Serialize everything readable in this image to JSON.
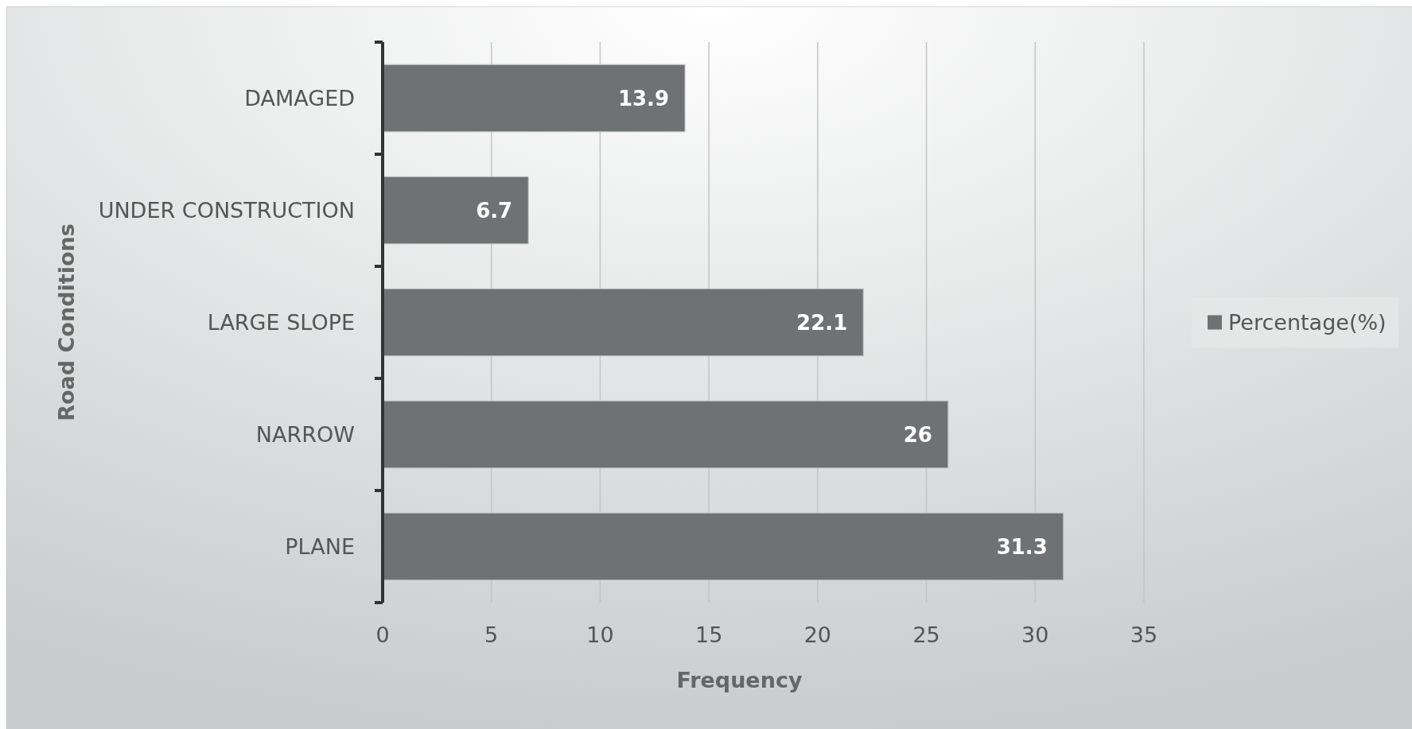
{
  "chart_data": {
    "type": "bar",
    "orientation": "horizontal",
    "xlabel": "Frequency",
    "ylabel": "Road Conditions",
    "categories": [
      "DAMAGED",
      "UNDER CONSTRUCTION",
      "LARGE SLOPE",
      "NARROW",
      "PLANE"
    ],
    "series": [
      {
        "name": "Percentage(%)",
        "color": "#6f7273",
        "values": [
          13.9,
          6.7,
          22.1,
          26,
          31.3
        ]
      }
    ],
    "xlim": [
      0,
      35
    ],
    "xticks": [
      0,
      5,
      10,
      15,
      20,
      25,
      30,
      35
    ],
    "grid": "x",
    "legend": "right",
    "data_labels": true
  }
}
